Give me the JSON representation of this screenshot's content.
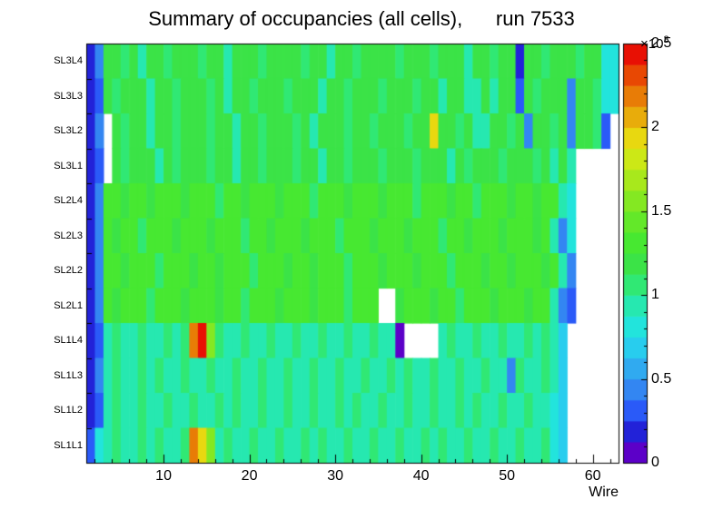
{
  "title": "Summary of occupancies (all cells),      run 7533",
  "chart_data": {
    "type": "heatmap",
    "title": "Summary of occupancies (all cells),      run 7533",
    "xlabel": "Wire",
    "ylabel": "",
    "x_range": [
      1,
      63
    ],
    "x_ticks": [
      10,
      20,
      30,
      40,
      50,
      60
    ],
    "x_minor_tick_step": 2,
    "grid": false,
    "legend_position": "right-colorbar",
    "y_labels_top_to_bottom": [
      "SL3L4",
      "SL3L3",
      "SL3L2",
      "SL3L1",
      "SL2L4",
      "SL2L3",
      "SL2L2",
      "SL2L1",
      "SL1L4",
      "SL1L3",
      "SL1L2",
      "SL1L1"
    ],
    "colorbar": {
      "min": 0,
      "max": 2500,
      "multiplier": {
        "base": "×10",
        "exp": "3"
      },
      "ticks": [
        {
          "v": 0,
          "label": "0"
        },
        {
          "v": 500,
          "label": "0.5"
        },
        {
          "v": 1000,
          "label": "1"
        },
        {
          "v": 1500,
          "label": "1.5"
        },
        {
          "v": 2000,
          "label": "2"
        },
        {
          "v": 2500,
          "label": "2.5"
        }
      ],
      "minor_tick_step": 100,
      "palette": [
        "#5c00c8",
        "#2222d8",
        "#2a5af8",
        "#3386f2",
        "#30aaf0",
        "#28cdee",
        "#22e4dc",
        "#26e8b0",
        "#30e874",
        "#3be347",
        "#47e831",
        "#63e829",
        "#84e822",
        "#a8e81c",
        "#cce816",
        "#e8d810",
        "#e8ac0b",
        "#e87c06",
        "#e84803",
        "#e81004"
      ]
    },
    "null_means": "empty bin (rendered white)",
    "rows": [
      {
        "label": "SL3L4",
        "values": [
          150,
          400,
          1150,
          1150,
          1050,
          1150,
          950,
          1150,
          1150,
          1050,
          1150,
          1150,
          1150,
          1050,
          1150,
          1150,
          950,
          1150,
          1150,
          1150,
          1050,
          1150,
          1150,
          1150,
          1150,
          1050,
          1150,
          1150,
          950,
          1150,
          1150,
          1050,
          1150,
          1150,
          1150,
          1150,
          1050,
          1150,
          1150,
          1150,
          1050,
          1150,
          1150,
          1150,
          950,
          1150,
          1150,
          1050,
          1150,
          1150,
          200,
          1150,
          1150,
          1050,
          1150,
          1150,
          1150,
          1050,
          1150,
          1150,
          850,
          850
        ]
      },
      {
        "label": "SL3L3",
        "values": [
          150,
          300,
          1150,
          1050,
          1150,
          1150,
          1150,
          950,
          1150,
          1150,
          1050,
          1150,
          1150,
          1150,
          1050,
          1150,
          950,
          1150,
          1150,
          1050,
          1150,
          1150,
          1150,
          1050,
          1150,
          1150,
          1150,
          950,
          1150,
          1150,
          1050,
          1150,
          1150,
          1150,
          1050,
          1150,
          1150,
          1150,
          1050,
          1150,
          1150,
          950,
          1150,
          1150,
          900,
          950,
          1150,
          900,
          1150,
          1150,
          300,
          1150,
          1050,
          1150,
          1150,
          1150,
          400,
          1150,
          1150,
          1050,
          850,
          850
        ]
      },
      {
        "label": "SL3L2",
        "values": [
          150,
          400,
          null,
          1150,
          1050,
          1150,
          1150,
          950,
          1150,
          1150,
          1050,
          1150,
          1150,
          1150,
          1050,
          1150,
          1150,
          950,
          1150,
          1150,
          1050,
          1150,
          1150,
          1150,
          1050,
          1150,
          950,
          1150,
          1150,
          1150,
          1050,
          1150,
          1150,
          1050,
          1150,
          1150,
          1150,
          1050,
          1150,
          1150,
          1900,
          1150,
          1150,
          1050,
          1150,
          900,
          950,
          1150,
          1150,
          1050,
          1150,
          400,
          1150,
          1150,
          1050,
          1150,
          400,
          1150,
          1150,
          1050,
          300,
          null
        ]
      },
      {
        "label": "SL3L1",
        "values": [
          150,
          250,
          null,
          1150,
          1050,
          1150,
          1150,
          1150,
          950,
          1150,
          1050,
          1150,
          1150,
          1150,
          1050,
          1150,
          1150,
          950,
          1150,
          1150,
          1050,
          1150,
          1150,
          1150,
          1050,
          1150,
          1150,
          950,
          1150,
          1150,
          1050,
          1150,
          1150,
          1150,
          1050,
          1150,
          1150,
          1150,
          1050,
          1150,
          1150,
          1150,
          950,
          1150,
          1050,
          1150,
          1150,
          1150,
          1050,
          1150,
          1150,
          1150,
          1050,
          1150,
          950,
          1150,
          900,
          null,
          null,
          null,
          null,
          null
        ]
      },
      {
        "label": "SL2L4",
        "values": [
          150,
          400,
          1250,
          1250,
          1150,
          1250,
          1250,
          1150,
          1250,
          1250,
          1250,
          1150,
          1250,
          1250,
          1250,
          1100,
          1250,
          1250,
          1150,
          1250,
          1250,
          1250,
          1150,
          1250,
          1250,
          1250,
          1100,
          1250,
          1250,
          1250,
          1150,
          1250,
          1250,
          1250,
          1150,
          1250,
          1250,
          1250,
          1100,
          1250,
          1250,
          1250,
          1150,
          1250,
          1250,
          1100,
          1250,
          1250,
          1250,
          1150,
          1250,
          1250,
          1150,
          1250,
          1250,
          900,
          800,
          null,
          null,
          null,
          null,
          null
        ]
      },
      {
        "label": "SL2L3",
        "values": [
          150,
          400,
          1250,
          1150,
          1250,
          1250,
          1100,
          1250,
          1250,
          1250,
          1150,
          1250,
          1250,
          1250,
          1150,
          1250,
          1250,
          1250,
          1100,
          1250,
          1250,
          1150,
          1250,
          1250,
          1250,
          1150,
          1250,
          1250,
          1250,
          1100,
          1250,
          1250,
          1250,
          1150,
          1250,
          1250,
          1250,
          1150,
          1250,
          1250,
          1250,
          1100,
          1250,
          1250,
          1150,
          1250,
          1250,
          1250,
          1150,
          1250,
          1250,
          1250,
          1150,
          1250,
          900,
          400,
          800,
          null,
          null,
          null,
          null,
          null
        ]
      },
      {
        "label": "SL2L2",
        "values": [
          150,
          400,
          1250,
          1250,
          1150,
          1250,
          1250,
          1250,
          1100,
          1250,
          1250,
          1250,
          1150,
          1250,
          1250,
          1150,
          1250,
          1250,
          1250,
          1100,
          1250,
          1250,
          1250,
          1150,
          1250,
          1250,
          1150,
          1250,
          1250,
          1250,
          1100,
          1250,
          1250,
          1250,
          1150,
          1250,
          1250,
          1250,
          1150,
          1250,
          1250,
          1250,
          1100,
          1250,
          1250,
          1250,
          1150,
          1250,
          1250,
          1150,
          1250,
          1250,
          1250,
          1150,
          1250,
          900,
          400,
          null,
          null,
          null,
          null,
          null
        ]
      },
      {
        "label": "SL2L1",
        "values": [
          150,
          400,
          1250,
          1150,
          1250,
          1250,
          1250,
          1100,
          1250,
          1250,
          1250,
          1150,
          1250,
          1250,
          1250,
          1150,
          1250,
          1250,
          1100,
          1250,
          1250,
          1250,
          1150,
          1250,
          1250,
          1250,
          1150,
          1250,
          1250,
          1250,
          1100,
          1250,
          1250,
          1250,
          null,
          null,
          1150,
          1250,
          1250,
          1250,
          1150,
          1250,
          1250,
          1100,
          1250,
          1250,
          1250,
          1150,
          1250,
          1250,
          1250,
          1150,
          1250,
          1250,
          900,
          400,
          250,
          null,
          null,
          null,
          null,
          null
        ]
      },
      {
        "label": "SL1L4",
        "values": [
          150,
          300,
          900,
          1050,
          900,
          900,
          1050,
          900,
          900,
          1050,
          900,
          1050,
          2200,
          2450,
          1600,
          1050,
          900,
          900,
          1050,
          900,
          900,
          1050,
          900,
          900,
          1050,
          900,
          900,
          1050,
          900,
          900,
          1050,
          900,
          900,
          1050,
          900,
          900,
          100,
          null,
          null,
          null,
          null,
          900,
          1050,
          900,
          900,
          1050,
          900,
          900,
          1050,
          900,
          900,
          1050,
          900,
          1050,
          900,
          700,
          null,
          null,
          null,
          null,
          null,
          null
        ]
      },
      {
        "label": "SL1L3",
        "values": [
          150,
          400,
          900,
          1050,
          900,
          900,
          1050,
          900,
          1050,
          900,
          900,
          1050,
          900,
          900,
          1050,
          900,
          900,
          1050,
          900,
          900,
          1050,
          900,
          900,
          1050,
          900,
          900,
          1050,
          900,
          900,
          1050,
          900,
          900,
          1050,
          900,
          900,
          1050,
          900,
          1050,
          900,
          900,
          1050,
          900,
          900,
          1050,
          900,
          900,
          1050,
          900,
          900,
          400,
          1050,
          900,
          900,
          1050,
          900,
          700,
          null,
          null,
          null,
          null,
          null,
          null
        ]
      },
      {
        "label": "SL1L2",
        "values": [
          150,
          250,
          900,
          1050,
          900,
          900,
          1050,
          900,
          900,
          1050,
          900,
          900,
          1050,
          900,
          900,
          1050,
          900,
          1050,
          900,
          900,
          1050,
          900,
          900,
          1050,
          900,
          900,
          1050,
          900,
          900,
          1050,
          900,
          1050,
          900,
          900,
          1050,
          900,
          900,
          1050,
          900,
          900,
          1050,
          900,
          900,
          1050,
          900,
          1050,
          900,
          900,
          1050,
          900,
          900,
          1050,
          900,
          900,
          800,
          700,
          null,
          null,
          null,
          null,
          null,
          null
        ]
      },
      {
        "label": "SL1L1",
        "values": [
          250,
          800,
          900,
          1050,
          900,
          900,
          1050,
          900,
          1050,
          900,
          900,
          1050,
          2200,
          1950,
          1500,
          900,
          1050,
          900,
          900,
          1050,
          900,
          900,
          1050,
          900,
          900,
          1050,
          900,
          1050,
          900,
          900,
          1050,
          900,
          900,
          1050,
          900,
          900,
          1050,
          900,
          900,
          1050,
          900,
          1050,
          900,
          900,
          1050,
          900,
          900,
          1050,
          900,
          900,
          1050,
          900,
          900,
          1050,
          800,
          700,
          null,
          null,
          null,
          null,
          null,
          null
        ]
      }
    ]
  }
}
